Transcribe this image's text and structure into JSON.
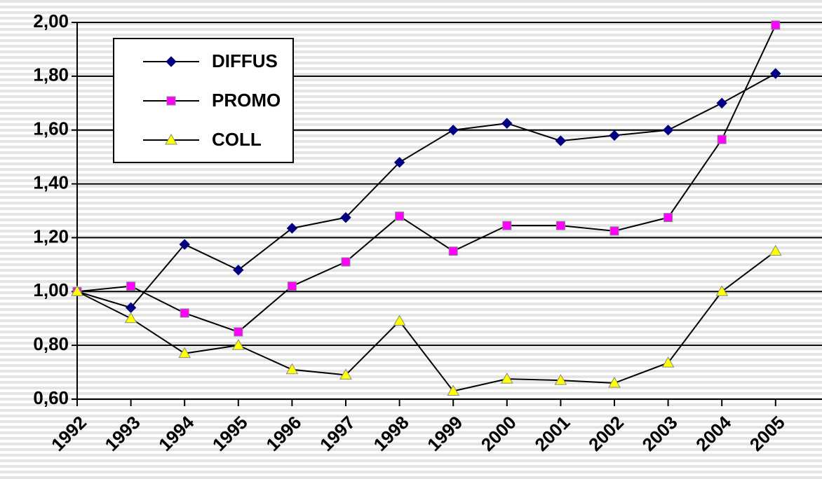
{
  "chart_data": {
    "type": "line",
    "categories": [
      "1992",
      "1993",
      "1994",
      "1995",
      "1996",
      "1997",
      "1998",
      "1999",
      "2000",
      "2001",
      "2002",
      "2003",
      "2004",
      "2005"
    ],
    "series": [
      {
        "name": "DIFFUS",
        "color": "#000080",
        "marker": "diamond",
        "values": [
          1.0,
          0.94,
          1.175,
          1.08,
          1.235,
          1.275,
          1.48,
          1.6,
          1.625,
          1.56,
          1.58,
          1.6,
          1.7,
          1.81
        ]
      },
      {
        "name": "PROMO",
        "color": "#ff00ff",
        "marker": "square",
        "values": [
          1.0,
          1.02,
          0.92,
          0.85,
          1.02,
          1.11,
          1.28,
          1.15,
          1.245,
          1.245,
          1.225,
          1.275,
          1.565,
          1.99
        ]
      },
      {
        "name": "COLL",
        "color": "#ffff00",
        "marker": "triangle",
        "values": [
          1.0,
          0.9,
          0.77,
          0.8,
          0.71,
          0.69,
          0.89,
          0.63,
          0.675,
          0.67,
          0.66,
          0.735,
          1.0,
          1.15
        ]
      }
    ],
    "ylim": [
      0.6,
      2.0
    ],
    "yticks": [
      {
        "value": 0.6,
        "label": "0,60"
      },
      {
        "value": 0.8,
        "label": "0,80"
      },
      {
        "value": 1.0,
        "label": "1,00"
      },
      {
        "value": 1.2,
        "label": "1,20"
      },
      {
        "value": 1.4,
        "label": "1,40"
      },
      {
        "value": 1.6,
        "label": "1,60"
      },
      {
        "value": 1.8,
        "label": "1,80"
      },
      {
        "value": 2.0,
        "label": "2,00"
      }
    ],
    "grid": true,
    "legend": "upper left"
  }
}
